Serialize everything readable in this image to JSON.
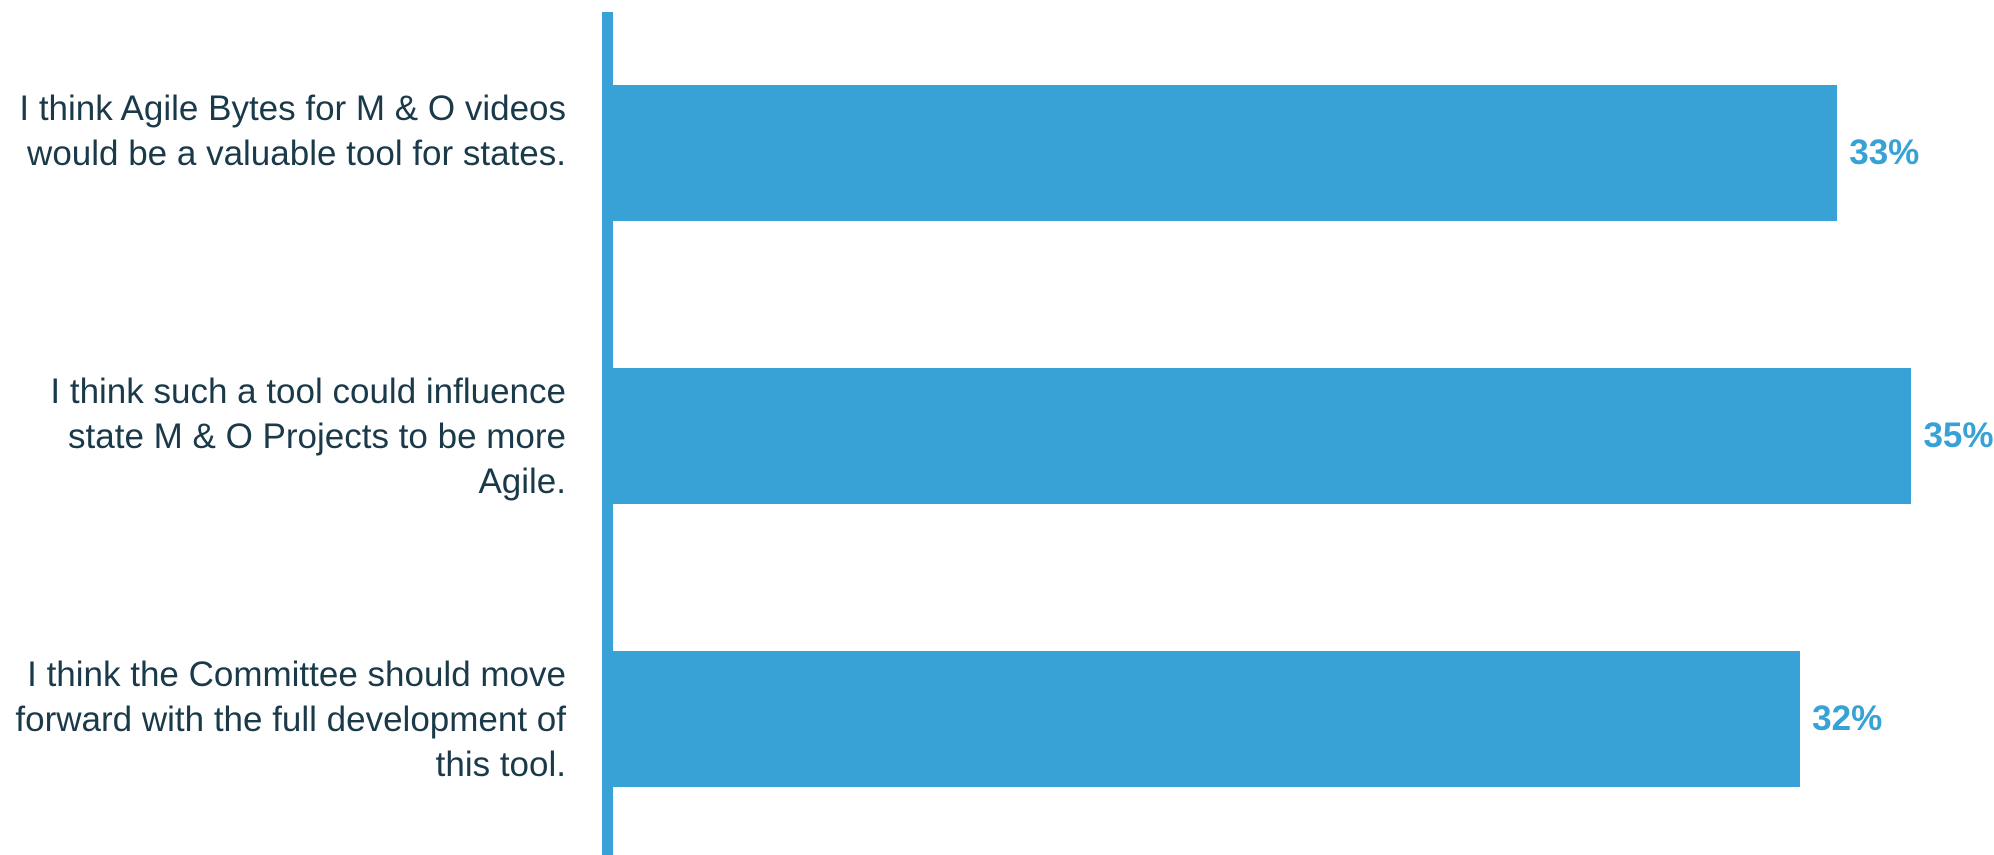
{
  "colors": {
    "bar": "#38a2d6",
    "axis": "#38a2d6",
    "value_label": "#38a2d6",
    "category_label": "#1a3a4a"
  },
  "chart_data": {
    "type": "bar",
    "orientation": "horizontal",
    "categories": [
      "I think Agile Bytes for M & O videos would be a valuable tool for states.",
      "I think such a tool could influence state M & O Projects to be more Agile.",
      "I think the Committee should move forward with the full development of this tool."
    ],
    "values": [
      33,
      35,
      32
    ],
    "value_labels": [
      "33%",
      "35%",
      "32%"
    ],
    "unit": "%",
    "xlim": [
      0,
      35.5
    ],
    "title": "",
    "xlabel": "",
    "ylabel": "",
    "grid": false,
    "legend": "none"
  }
}
